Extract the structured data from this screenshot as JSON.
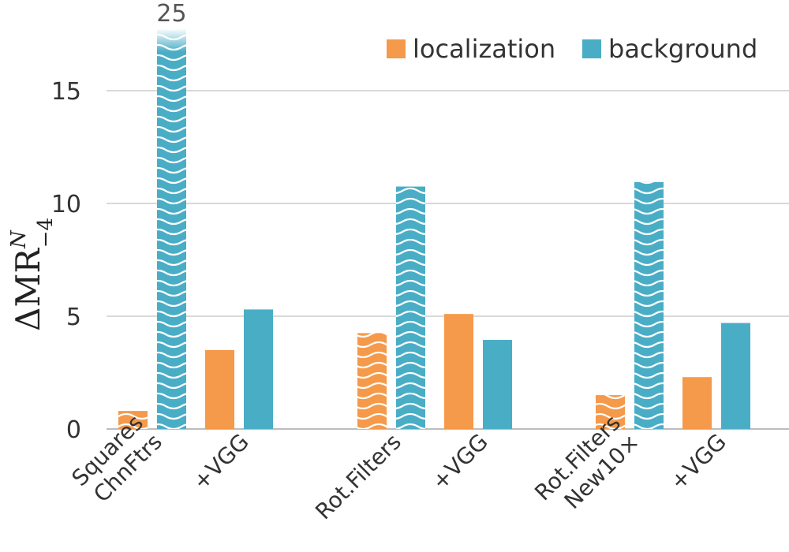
{
  "chart_data": {
    "type": "bar",
    "ylabel": {
      "base": "ΔMR",
      "sup": "N",
      "sub": "−4"
    },
    "ylim": [
      0,
      18.5
    ],
    "yticks": [
      0,
      5,
      10,
      15
    ],
    "grid": true,
    "legend_position": "top-right",
    "groups": [
      {
        "bars": [
          {
            "label_lines": [
              "Squares",
              "ChnFtrs"
            ],
            "localization": 0.8,
            "background": 25,
            "hatched": true,
            "background_label": "25"
          },
          {
            "label_lines": [
              "+VGG"
            ],
            "localization": 3.5,
            "background": 5.3,
            "hatched": false
          }
        ]
      },
      {
        "bars": [
          {
            "label_lines": [
              "Rot.Filters"
            ],
            "localization": 4.25,
            "background": 10.75,
            "hatched": true
          },
          {
            "label_lines": [
              "+VGG"
            ],
            "localization": 5.1,
            "background": 3.95,
            "hatched": false
          }
        ]
      },
      {
        "bars": [
          {
            "label_lines": [
              "Rot.Filters",
              "New10×"
            ],
            "localization": 1.5,
            "background": 10.95,
            "hatched": true
          },
          {
            "label_lines": [
              "+VGG"
            ],
            "localization": 2.3,
            "background": 4.7,
            "hatched": false
          }
        ]
      }
    ],
    "series": [
      {
        "name": "localization",
        "color": "#F5994A"
      },
      {
        "name": "background",
        "color": "#4AADC6"
      }
    ]
  }
}
